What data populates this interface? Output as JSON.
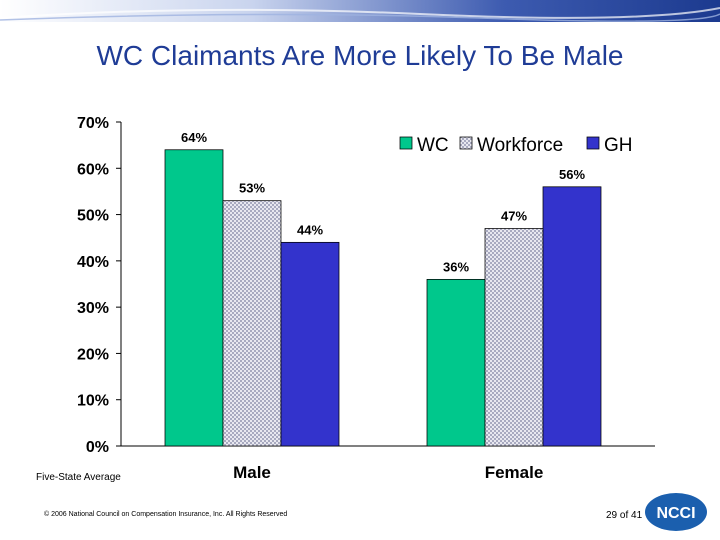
{
  "title": "WC Claimants Are More Likely To Be Male",
  "note": "Five-State Average",
  "footer": {
    "copyright": "© 2006 National Council on Compensation Insurance, Inc. All Rights Reserved",
    "page": "29 of 41",
    "logo_text": "NCCI"
  },
  "colors": {
    "title": "#1f3c96",
    "wc": "#00c88c",
    "workforce_fill": "#e8e8f0",
    "workforce_pattern": "#a8aac0",
    "gh": "#3333cc",
    "banner": "#2a4aa0",
    "logo": "#1b5fae"
  },
  "chart_data": {
    "type": "bar",
    "categories": [
      "Male",
      "Female"
    ],
    "series": [
      {
        "name": "WC",
        "values": [
          64,
          36
        ],
        "labels": [
          "64%",
          "36%"
        ]
      },
      {
        "name": "Workforce",
        "values": [
          53,
          47
        ],
        "labels": [
          "53%",
          "47%"
        ]
      },
      {
        "name": "GH",
        "values": [
          44,
          56
        ],
        "labels": [
          "44%",
          "56%"
        ]
      }
    ],
    "ylim": [
      0,
      70
    ],
    "yticks": [
      0,
      10,
      20,
      30,
      40,
      50,
      60,
      70
    ],
    "ytick_labels": [
      "0%",
      "10%",
      "20%",
      "30%",
      "40%",
      "50%",
      "60%",
      "70%"
    ],
    "grid": false,
    "legend": "top-right"
  }
}
